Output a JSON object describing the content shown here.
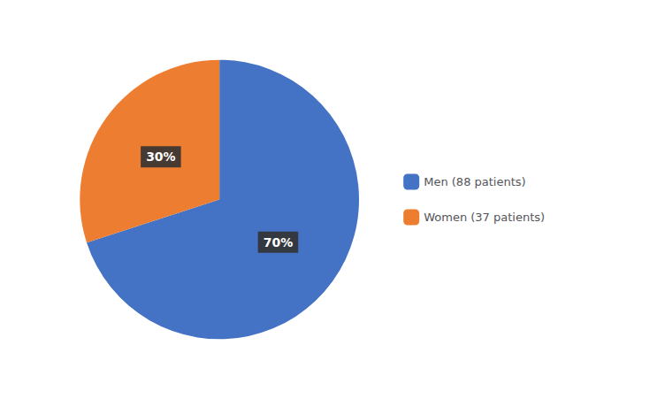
{
  "chart_data": {
    "type": "pie",
    "categories": [
      "Men (88 patients)",
      "Women (37 patients)"
    ],
    "values": [
      70,
      30
    ],
    "value_labels": [
      "70%",
      "30%"
    ],
    "colors": [
      "#4472C4",
      "#ED7D31"
    ],
    "data_labels": true,
    "legend": "right"
  }
}
